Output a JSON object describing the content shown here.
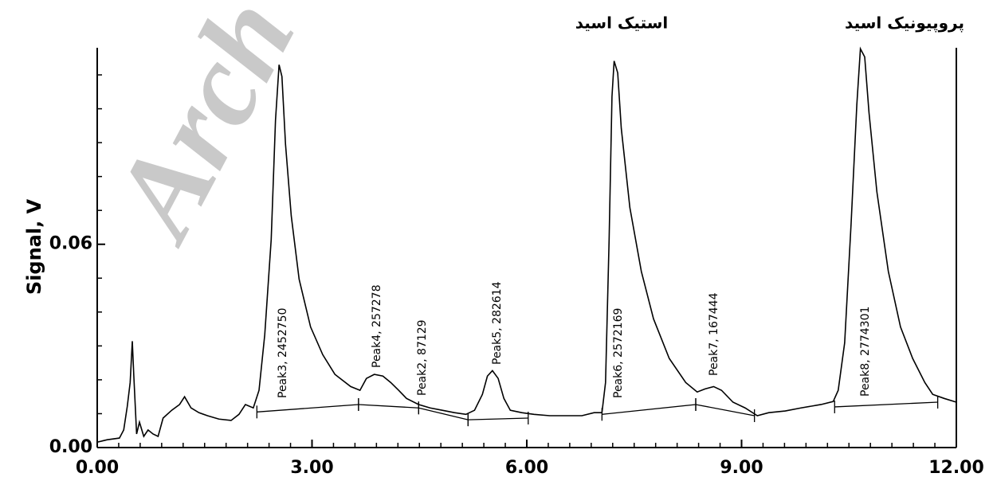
{
  "chart_data": {
    "type": "line",
    "ylabel": "Signal, V",
    "watermark": "Arch",
    "annotations": [
      "استیک اسید",
      "پروپیونیک اسید"
    ],
    "x": [
      0.0,
      0.14,
      0.31,
      0.37,
      0.42,
      0.46,
      0.49,
      0.51,
      0.55,
      0.59,
      0.65,
      0.71,
      0.78,
      0.85,
      0.92,
      1.04,
      1.15,
      1.22,
      1.31,
      1.42,
      1.54,
      1.7,
      1.87,
      1.98,
      2.07,
      2.18,
      2.26,
      2.34,
      2.43,
      2.49,
      2.54,
      2.58,
      2.63,
      2.71,
      2.82,
      2.98,
      3.15,
      3.32,
      3.54,
      3.67,
      3.76,
      3.87,
      3.99,
      4.1,
      4.21,
      4.32,
      4.49,
      4.65,
      4.82,
      4.99,
      5.15,
      5.27,
      5.38,
      5.45,
      5.52,
      5.6,
      5.68,
      5.77,
      5.93,
      6.1,
      6.32,
      6.55,
      6.77,
      6.94,
      7.05,
      7.1,
      7.15,
      7.19,
      7.22,
      7.27,
      7.32,
      7.44,
      7.6,
      7.77,
      7.99,
      8.22,
      8.38,
      8.49,
      8.61,
      8.72,
      8.88,
      9.05,
      9.22,
      9.38,
      9.61,
      9.83,
      10.11,
      10.28,
      10.35,
      10.44,
      10.53,
      10.61,
      10.66,
      10.72,
      10.78,
      10.89,
      11.05,
      11.22,
      11.39,
      11.56,
      11.67,
      11.83,
      12.0
    ],
    "values": [
      0.0016,
      0.0023,
      0.0028,
      0.0052,
      0.0122,
      0.0192,
      0.0314,
      0.0216,
      0.004,
      0.0075,
      0.0033,
      0.0052,
      0.004,
      0.0033,
      0.0087,
      0.011,
      0.0127,
      0.015,
      0.0117,
      0.0103,
      0.0094,
      0.0084,
      0.008,
      0.0098,
      0.0127,
      0.0117,
      0.0169,
      0.0333,
      0.0614,
      0.0966,
      0.113,
      0.1095,
      0.0895,
      0.0684,
      0.0497,
      0.0356,
      0.0274,
      0.0216,
      0.018,
      0.0169,
      0.0204,
      0.0216,
      0.0211,
      0.0192,
      0.0169,
      0.0145,
      0.0127,
      0.0117,
      0.011,
      0.0103,
      0.0098,
      0.011,
      0.0157,
      0.0211,
      0.0227,
      0.0204,
      0.0145,
      0.011,
      0.0103,
      0.0098,
      0.0094,
      0.0094,
      0.0094,
      0.0103,
      0.0103,
      0.0192,
      0.0614,
      0.1036,
      0.1141,
      0.1106,
      0.0942,
      0.0708,
      0.052,
      0.038,
      0.0263,
      0.0192,
      0.0164,
      0.0173,
      0.018,
      0.0169,
      0.0134,
      0.0117,
      0.0094,
      0.0103,
      0.0108,
      0.0117,
      0.0127,
      0.0136,
      0.0169,
      0.0309,
      0.0661,
      0.1012,
      0.1177,
      0.1153,
      0.0989,
      0.0755,
      0.052,
      0.0356,
      0.0263,
      0.0192,
      0.0157,
      0.0145,
      0.0134
    ],
    "color": "#000000",
    "peaks": [
      {
        "label": "Peak3, 2452750",
        "baseline": [
          [
            2.23,
            0.0105
          ],
          [
            3.65,
            0.0127
          ]
        ]
      },
      {
        "label": "Peak4, 257278",
        "baseline": [
          [
            3.65,
            0.0127
          ],
          [
            4.49,
            0.0117
          ]
        ]
      },
      {
        "label": "Peak2, 87129",
        "baseline": [
          [
            4.49,
            0.0117
          ],
          [
            5.18,
            0.0082
          ]
        ]
      },
      {
        "label": "Peak5, 282614",
        "baseline": [
          [
            5.18,
            0.0082
          ],
          [
            6.02,
            0.0087
          ]
        ]
      },
      {
        "label": "Peak6, 2572169",
        "baseline": [
          [
            7.05,
            0.0098
          ],
          [
            8.36,
            0.0127
          ]
        ]
      },
      {
        "label": "Peak7, 167444",
        "baseline": [
          [
            8.36,
            0.0127
          ],
          [
            9.18,
            0.0094
          ]
        ]
      },
      {
        "label": "Peak8, 2774301",
        "baseline": [
          [
            10.3,
            0.012
          ],
          [
            11.74,
            0.0134
          ]
        ]
      }
    ],
    "xlim": [
      0,
      12
    ],
    "ylim": [
      0,
      0.118
    ],
    "xticks": [
      {
        "value": 0,
        "label": "0.00"
      },
      {
        "value": 3,
        "label": "3.00"
      },
      {
        "value": 6,
        "label": "6.00"
      },
      {
        "value": 9,
        "label": "9.00"
      },
      {
        "value": 12,
        "label": "12.00"
      }
    ],
    "yticks": [
      {
        "value": 0,
        "label": "0.00"
      },
      {
        "value": 0.06,
        "label": "0.06"
      }
    ],
    "xminor_step": 0.3,
    "yminor_step": 0.01
  }
}
